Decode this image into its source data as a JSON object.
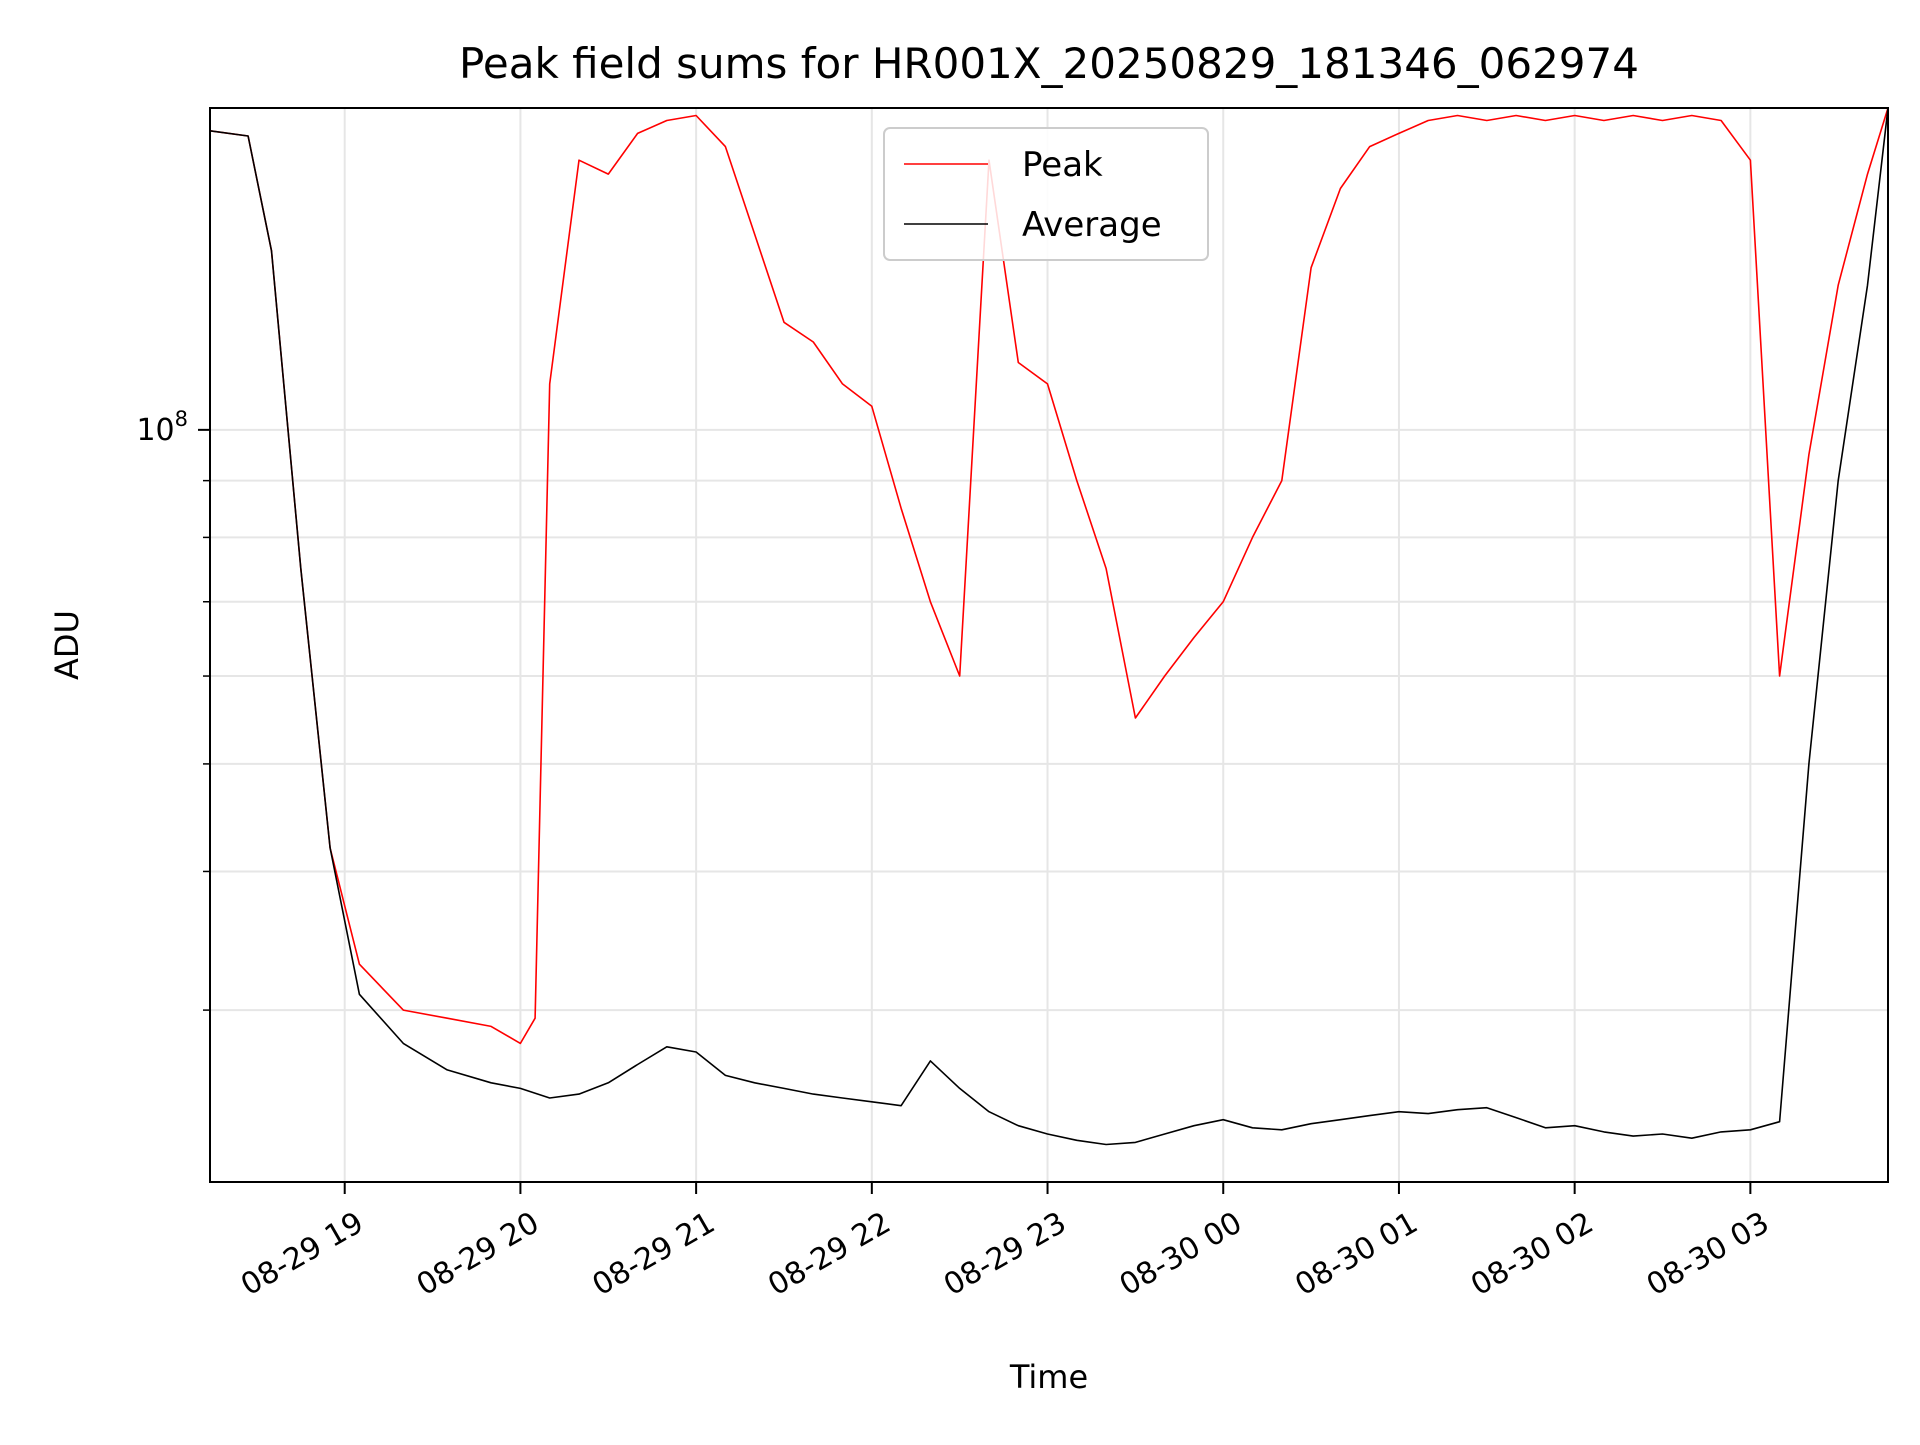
{
  "chart_data": {
    "type": "line",
    "title": "Peak field sums for HR001X_20250829_181346_062974",
    "xlabel": "Time",
    "ylabel": "ADU",
    "x_scale": "time",
    "y_scale": "log",
    "x_range": [
      "2025-08-29T18:14:00",
      "2025-08-30T03:47:00"
    ],
    "ylim": [
      21000000,
      195000000
    ],
    "x_ticks": [
      {
        "value": "2025-08-29T19:00:00",
        "label": "08-29 19"
      },
      {
        "value": "2025-08-29T20:00:00",
        "label": "08-29 20"
      },
      {
        "value": "2025-08-29T21:00:00",
        "label": "08-29 21"
      },
      {
        "value": "2025-08-29T22:00:00",
        "label": "08-29 22"
      },
      {
        "value": "2025-08-29T23:00:00",
        "label": "08-29 23"
      },
      {
        "value": "2025-08-30T00:00:00",
        "label": "08-30 00"
      },
      {
        "value": "2025-08-30T01:00:00",
        "label": "08-30 01"
      },
      {
        "value": "2025-08-30T02:00:00",
        "label": "08-30 02"
      },
      {
        "value": "2025-08-30T03:00:00",
        "label": "08-30 03"
      }
    ],
    "y_major_ticks": [
      {
        "value": 100000000,
        "label_base": "10",
        "label_exp": "8"
      }
    ],
    "y_minor_ticks": [
      30000000,
      40000000,
      50000000,
      60000000,
      70000000,
      80000000,
      90000000
    ],
    "grid": true,
    "legend": {
      "position": "top-center"
    },
    "series": [
      {
        "name": "Peak",
        "color": "#ff0000",
        "x": [
          "2025-08-29T18:14:00",
          "2025-08-29T18:27:00",
          "2025-08-29T18:35:00",
          "2025-08-29T18:45:00",
          "2025-08-29T18:55:00",
          "2025-08-29T19:05:00",
          "2025-08-29T19:20:00",
          "2025-08-29T19:35:00",
          "2025-08-29T19:50:00",
          "2025-08-29T20:00:00",
          "2025-08-29T20:05:00",
          "2025-08-29T20:10:00",
          "2025-08-29T20:20:00",
          "2025-08-29T20:30:00",
          "2025-08-29T20:40:00",
          "2025-08-29T20:50:00",
          "2025-08-29T21:00:00",
          "2025-08-29T21:10:00",
          "2025-08-29T21:20:00",
          "2025-08-29T21:30:00",
          "2025-08-29T21:40:00",
          "2025-08-29T21:50:00",
          "2025-08-29T22:00:00",
          "2025-08-29T22:10:00",
          "2025-08-29T22:20:00",
          "2025-08-29T22:30:00",
          "2025-08-29T22:40:00",
          "2025-08-29T22:50:00",
          "2025-08-29T23:00:00",
          "2025-08-29T23:10:00",
          "2025-08-29T23:20:00",
          "2025-08-29T23:30:00",
          "2025-08-29T23:40:00",
          "2025-08-29T23:50:00",
          "2025-08-30T00:00:00",
          "2025-08-30T00:10:00",
          "2025-08-30T00:20:00",
          "2025-08-30T00:30:00",
          "2025-08-30T00:40:00",
          "2025-08-30T00:50:00",
          "2025-08-30T01:00:00",
          "2025-08-30T01:10:00",
          "2025-08-30T01:20:00",
          "2025-08-30T01:30:00",
          "2025-08-30T01:40:00",
          "2025-08-30T01:50:00",
          "2025-08-30T02:00:00",
          "2025-08-30T02:10:00",
          "2025-08-30T02:20:00",
          "2025-08-30T02:30:00",
          "2025-08-30T02:40:00",
          "2025-08-30T02:50:00",
          "2025-08-30T03:00:00",
          "2025-08-30T03:10:00",
          "2025-08-30T03:20:00",
          "2025-08-30T03:30:00",
          "2025-08-30T03:40:00",
          "2025-08-30T03:47:00"
        ],
        "values": [
          186000000,
          184000000,
          145000000,
          75000000,
          42000000,
          33000000,
          30000000,
          29500000,
          29000000,
          28000000,
          29500000,
          110000000,
          175000000,
          170000000,
          185000000,
          190000000,
          192000000,
          180000000,
          150000000,
          125000000,
          120000000,
          110000000,
          105000000,
          85000000,
          70000000,
          60000000,
          175000000,
          115000000,
          110000000,
          90000000,
          75000000,
          55000000,
          60000000,
          65000000,
          70000000,
          80000000,
          90000000,
          140000000,
          165000000,
          180000000,
          185000000,
          190000000,
          192000000,
          190000000,
          192000000,
          190000000,
          192000000,
          190000000,
          192000000,
          190000000,
          192000000,
          190000000,
          175000000,
          60000000,
          95000000,
          135000000,
          170000000,
          195000000
        ]
      },
      {
        "name": "Average",
        "color": "#000000",
        "x": [
          "2025-08-29T18:14:00",
          "2025-08-29T18:27:00",
          "2025-08-29T18:35:00",
          "2025-08-29T18:45:00",
          "2025-08-29T18:55:00",
          "2025-08-29T19:05:00",
          "2025-08-29T19:20:00",
          "2025-08-29T19:35:00",
          "2025-08-29T19:50:00",
          "2025-08-29T20:00:00",
          "2025-08-29T20:10:00",
          "2025-08-29T20:20:00",
          "2025-08-29T20:30:00",
          "2025-08-29T20:40:00",
          "2025-08-29T20:50:00",
          "2025-08-29T21:00:00",
          "2025-08-29T21:10:00",
          "2025-08-29T21:20:00",
          "2025-08-29T21:30:00",
          "2025-08-29T21:40:00",
          "2025-08-29T21:50:00",
          "2025-08-29T22:00:00",
          "2025-08-29T22:10:00",
          "2025-08-29T22:20:00",
          "2025-08-29T22:30:00",
          "2025-08-29T22:40:00",
          "2025-08-29T22:50:00",
          "2025-08-29T23:00:00",
          "2025-08-29T23:10:00",
          "2025-08-29T23:20:00",
          "2025-08-29T23:30:00",
          "2025-08-29T23:40:00",
          "2025-08-29T23:50:00",
          "2025-08-30T00:00:00",
          "2025-08-30T00:10:00",
          "2025-08-30T00:20:00",
          "2025-08-30T00:30:00",
          "2025-08-30T00:40:00",
          "2025-08-30T00:50:00",
          "2025-08-30T01:00:00",
          "2025-08-30T01:10:00",
          "2025-08-30T01:20:00",
          "2025-08-30T01:30:00",
          "2025-08-30T01:40:00",
          "2025-08-30T01:50:00",
          "2025-08-30T02:00:00",
          "2025-08-30T02:10:00",
          "2025-08-30T02:20:00",
          "2025-08-30T02:30:00",
          "2025-08-30T02:40:00",
          "2025-08-30T02:50:00",
          "2025-08-30T03:00:00",
          "2025-08-30T03:10:00",
          "2025-08-30T03:20:00",
          "2025-08-30T03:30:00",
          "2025-08-30T03:40:00",
          "2025-08-30T03:47:00"
        ],
        "values": [
          186000000,
          184000000,
          145000000,
          75000000,
          42000000,
          31000000,
          28000000,
          26500000,
          25800000,
          25500000,
          25000000,
          25200000,
          25800000,
          26800000,
          27800000,
          27500000,
          26200000,
          25800000,
          25500000,
          25200000,
          25000000,
          24800000,
          24600000,
          27000000,
          25500000,
          24300000,
          23600000,
          23200000,
          22900000,
          22700000,
          22800000,
          23200000,
          23600000,
          23900000,
          23500000,
          23400000,
          23700000,
          23900000,
          24100000,
          24300000,
          24200000,
          24400000,
          24500000,
          24000000,
          23500000,
          23600000,
          23300000,
          23100000,
          23200000,
          23000000,
          23300000,
          23400000,
          23800000,
          50000000,
          90000000,
          135000000,
          195000000
        ]
      }
    ]
  }
}
